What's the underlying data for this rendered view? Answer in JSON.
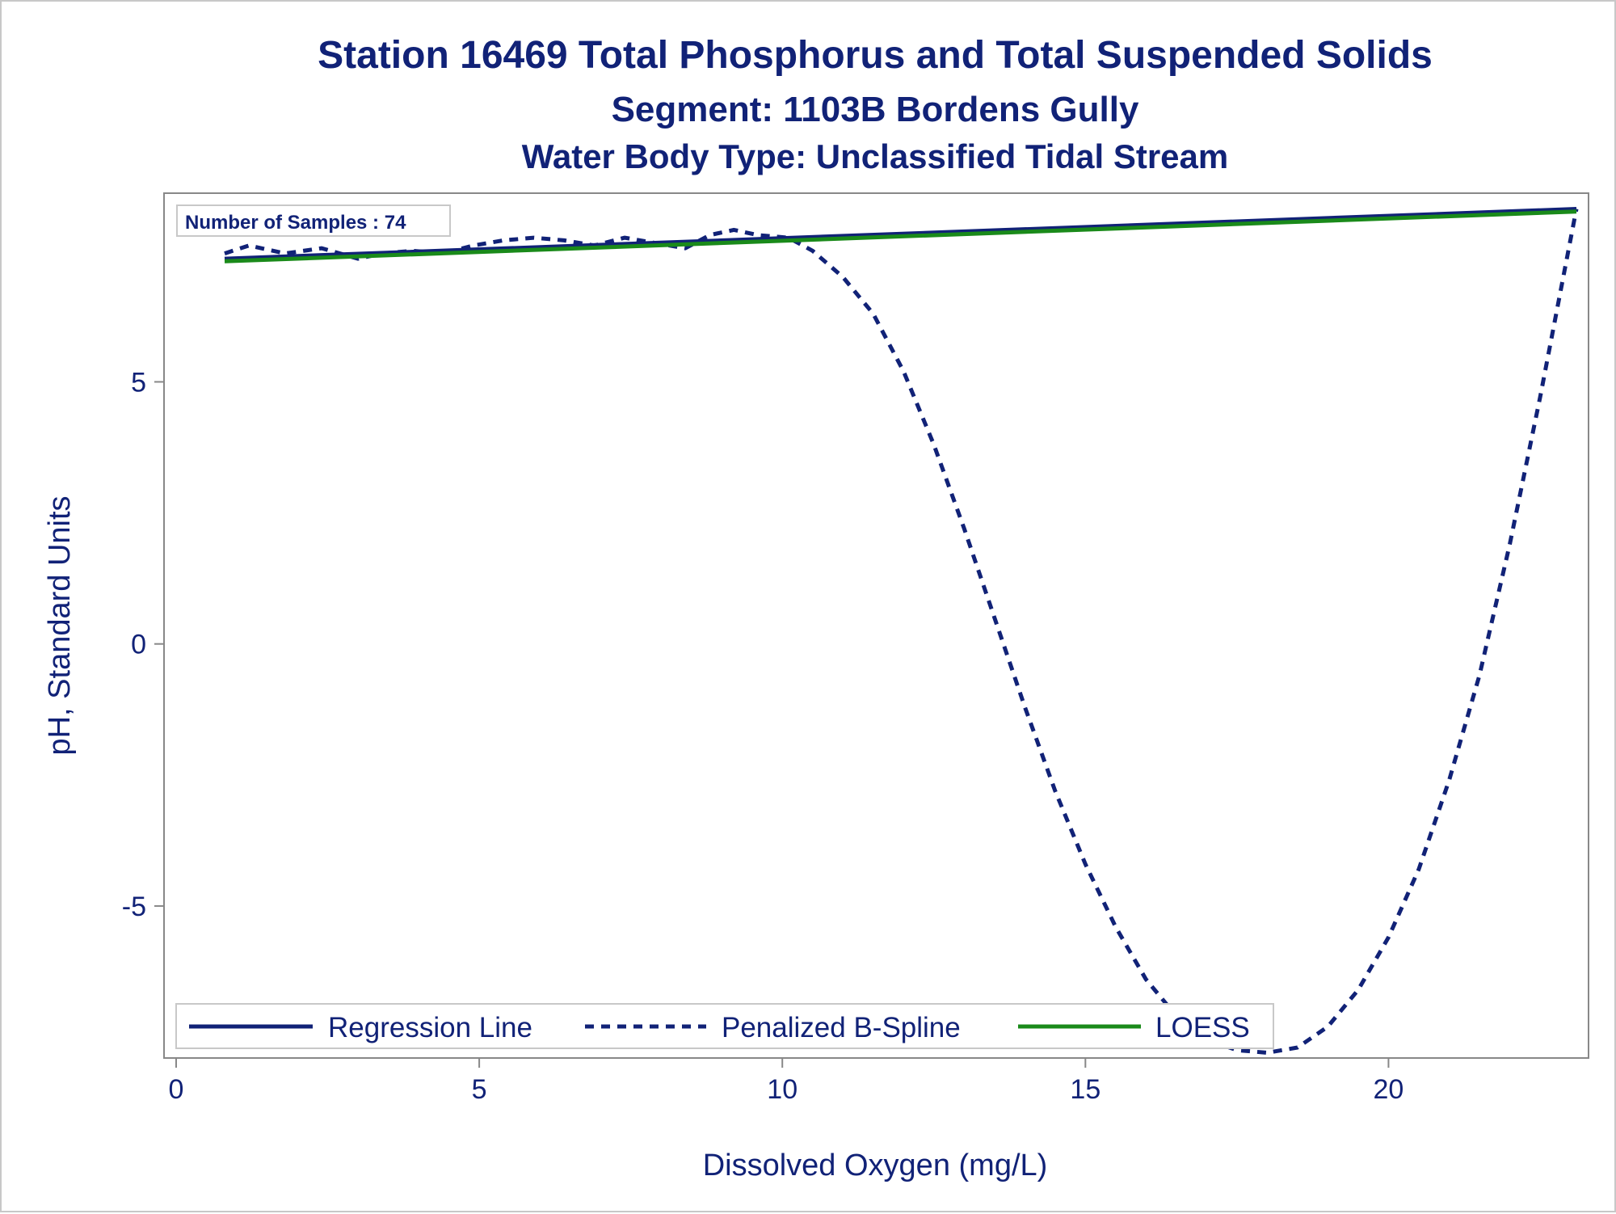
{
  "titles": {
    "line1": "Station 16469  Total Phosphorus and Total Suspended Solids",
    "line2": "Segment: 1103B  Bordens Gully",
    "line3": "Water Body Type: Unclassified Tidal Stream"
  },
  "inset": {
    "samples_text": "Number of Samples : 74"
  },
  "colors": {
    "text": "#112277",
    "regression": "#112277",
    "spline": "#112277",
    "loess": "#1a8a1a",
    "axis": "#888888"
  },
  "chart_data": {
    "type": "line",
    "title": "Station 16469  Total Phosphorus and Total Suspended Solids",
    "subtitle": [
      "Segment: 1103B  Bordens Gully",
      "Water Body Type: Unclassified Tidal Stream"
    ],
    "xlabel": "Dissolved Oxygen (mg/L)",
    "ylabel": "pH, Standard Units",
    "xlim": [
      -0.2,
      23.3
    ],
    "ylim": [
      -7.9,
      8.6
    ],
    "xticks": [
      0,
      5,
      10,
      15,
      20
    ],
    "yticks": [
      -5,
      0,
      5
    ],
    "grid": false,
    "legend_position": "bottom-inside",
    "series": [
      {
        "name": "Regression Line",
        "style": "solid",
        "x": [
          0.8,
          23.1
        ],
        "y": [
          7.35,
          8.3
        ]
      },
      {
        "name": "Penalized B-Spline",
        "style": "dashed",
        "x": [
          0.8,
          1.2,
          1.8,
          2.4,
          3.0,
          3.4,
          3.9,
          4.4,
          4.9,
          5.4,
          5.9,
          6.4,
          6.9,
          7.4,
          7.9,
          8.4,
          8.8,
          9.2,
          9.6,
          10.1,
          10.5,
          11.0,
          11.5,
          12.0,
          12.5,
          13.0,
          13.5,
          14.0,
          14.5,
          15.0,
          15.5,
          16.0,
          16.5,
          17.0,
          17.5,
          18.0,
          18.5,
          19.0,
          19.5,
          20.0,
          20.5,
          21.0,
          21.5,
          22.0,
          22.5,
          23.1
        ],
        "y": [
          7.45,
          7.6,
          7.45,
          7.55,
          7.35,
          7.45,
          7.5,
          7.45,
          7.6,
          7.7,
          7.75,
          7.7,
          7.6,
          7.75,
          7.65,
          7.55,
          7.8,
          7.9,
          7.8,
          7.75,
          7.5,
          7.0,
          6.3,
          5.2,
          3.8,
          2.2,
          0.5,
          -1.2,
          -2.8,
          -4.2,
          -5.4,
          -6.4,
          -7.1,
          -7.55,
          -7.75,
          -7.8,
          -7.7,
          -7.3,
          -6.6,
          -5.6,
          -4.3,
          -2.6,
          -0.6,
          1.9,
          4.7,
          8.3
        ]
      },
      {
        "name": "LOESS",
        "style": "solid",
        "x": [
          0.8,
          23.1
        ],
        "y": [
          7.3,
          8.25
        ]
      }
    ]
  }
}
